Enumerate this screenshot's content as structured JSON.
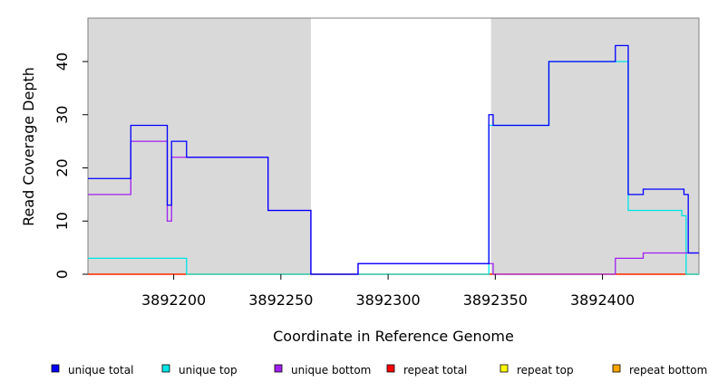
{
  "chart_data": {
    "type": "line",
    "xlabel": "Coordinate in Reference Genome",
    "ylabel": "Read Coverage Depth",
    "xlim": [
      3892160,
      3892445
    ],
    "ylim": [
      0,
      48
    ],
    "x_ticks": [
      3892200,
      3892250,
      3892300,
      3892350,
      3892400
    ],
    "y_ticks": [
      0,
      10,
      20,
      30,
      40
    ],
    "x_tick_labels": [
      "3892200",
      "3892250",
      "3892300",
      "3892350",
      "3892400"
    ],
    "y_tick_labels": [
      "0",
      "10",
      "20",
      "30",
      "40"
    ],
    "shaded_regions": [
      [
        3892160,
        3892264
      ],
      [
        3892348,
        3892445
      ]
    ],
    "shade_color": "#d9d9d9",
    "step": "post",
    "series": [
      {
        "name": "unique total",
        "color": "#0000ff",
        "x": [
          3892160,
          3892180,
          3892197,
          3892199,
          3892206,
          3892244,
          3892264,
          3892286,
          3892347,
          3892349,
          3892375,
          3892406,
          3892412,
          3892419,
          3892438,
          3892440,
          3892445
        ],
        "y": [
          18,
          28,
          13,
          25,
          22,
          12,
          0,
          2,
          30,
          28,
          40,
          43,
          15,
          16,
          15,
          4,
          4
        ]
      },
      {
        "name": "unique top",
        "color": "#00e5e5",
        "x": [
          3892160,
          3892206,
          3892347,
          3892349,
          3892375,
          3892412,
          3892437,
          3892439,
          3892445
        ],
        "y": [
          3,
          0,
          28,
          28,
          40,
          12,
          11,
          0,
          0
        ]
      },
      {
        "name": "unique bottom",
        "color": "#a020f0",
        "x": [
          3892160,
          3892180,
          3892197,
          3892199,
          3892206,
          3892244,
          3892264,
          3892286,
          3892347,
          3892349,
          3892406,
          3892419,
          3892440,
          3892445
        ],
        "y": [
          15,
          25,
          10,
          22,
          22,
          12,
          0,
          2,
          2,
          0,
          3,
          4,
          4,
          4
        ]
      },
      {
        "name": "repeat total",
        "color": "#ff0000",
        "x": [
          3892160,
          3892445
        ],
        "y": [
          0,
          0
        ]
      },
      {
        "name": "repeat top",
        "color": "#ffff00",
        "x": [
          3892160,
          3892445
        ],
        "y": [
          0,
          0
        ]
      },
      {
        "name": "repeat bottom",
        "color": "#ffa500",
        "x": [
          3892160,
          3892445
        ],
        "y": [
          0,
          0
        ]
      }
    ],
    "legend_position": "bottom"
  }
}
